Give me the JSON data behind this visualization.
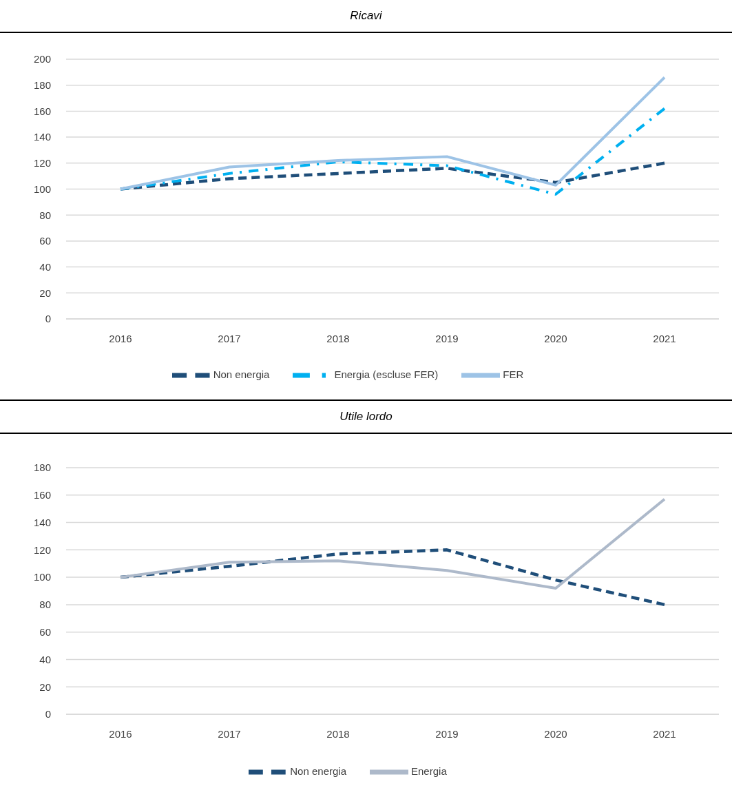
{
  "chart_data": [
    {
      "type": "line",
      "title": "Ricavi",
      "categories": [
        "2016",
        "2017",
        "2018",
        "2019",
        "2020",
        "2021"
      ],
      "series": [
        {
          "name": "Non energia",
          "color": "#1f4e79",
          "line_style": "dashed",
          "values": [
            100,
            108,
            112,
            116,
            105,
            120
          ]
        },
        {
          "name": "Energia (escluse FER)",
          "color": "#00b0f0",
          "line_style": "dashdot",
          "values": [
            100,
            112,
            121,
            118,
            96,
            162
          ]
        },
        {
          "name": "FER",
          "color": "#9dc3e6",
          "line_style": "solid",
          "values": [
            100,
            117,
            122,
            125,
            103,
            186
          ]
        }
      ],
      "ylim": [
        0,
        200
      ],
      "yticks": [
        0,
        20,
        40,
        60,
        80,
        100,
        120,
        140,
        160,
        180,
        200
      ],
      "grid": "y",
      "legend": "bottom"
    },
    {
      "type": "line",
      "title": "Utile lordo",
      "categories": [
        "2016",
        "2017",
        "2018",
        "2019",
        "2020",
        "2021"
      ],
      "series": [
        {
          "name": "Non energia",
          "color": "#1f4e79",
          "line_style": "dashed",
          "values": [
            100,
            108,
            117,
            120,
            98,
            80
          ]
        },
        {
          "name": "Energia",
          "color": "#adb9ca",
          "line_style": "solid",
          "values": [
            100,
            111,
            112,
            105,
            92,
            157
          ]
        }
      ],
      "ylim": [
        0,
        180
      ],
      "yticks": [
        0,
        20,
        40,
        60,
        80,
        100,
        120,
        140,
        160,
        180
      ],
      "grid": "y",
      "legend": "bottom"
    }
  ]
}
